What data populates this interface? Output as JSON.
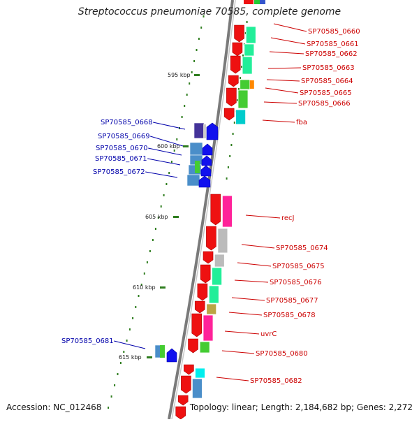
{
  "title": "Streptococcus pneumoniae 70585, complete genome",
  "footer": {
    "accession": "Accession: NC_012468",
    "summary": "Topology: linear; Length: 2,184,682 bp; Genes: 2,272"
  },
  "scale_labels": [
    "595 kbp",
    "600 kbp",
    "605 kbp",
    "610 kbp",
    "615 kbp"
  ],
  "colors": {
    "right_label": "#cc0000",
    "left_label": "#0000aa",
    "backbone": "#7a7a7a",
    "tick": "#2e7d1e"
  },
  "right_genes": [
    "SP70585_0660",
    "SP70585_0661",
    "SP70585_0662",
    "SP70585_0663",
    "SP70585_0664",
    "SP70585_0665",
    "SP70585_0666",
    "fba",
    "recJ",
    "SP70585_0674",
    "SP70585_0675",
    "SP70585_0676",
    "SP70585_0677",
    "SP70585_0678",
    "uvrC",
    "SP70585_0680",
    "SP70585_0682"
  ],
  "left_genes": [
    "SP70585_0668",
    "SP70585_0669",
    "SP70585_0670",
    "SP70585_0671",
    "SP70585_0672",
    "SP70585_0681"
  ]
}
